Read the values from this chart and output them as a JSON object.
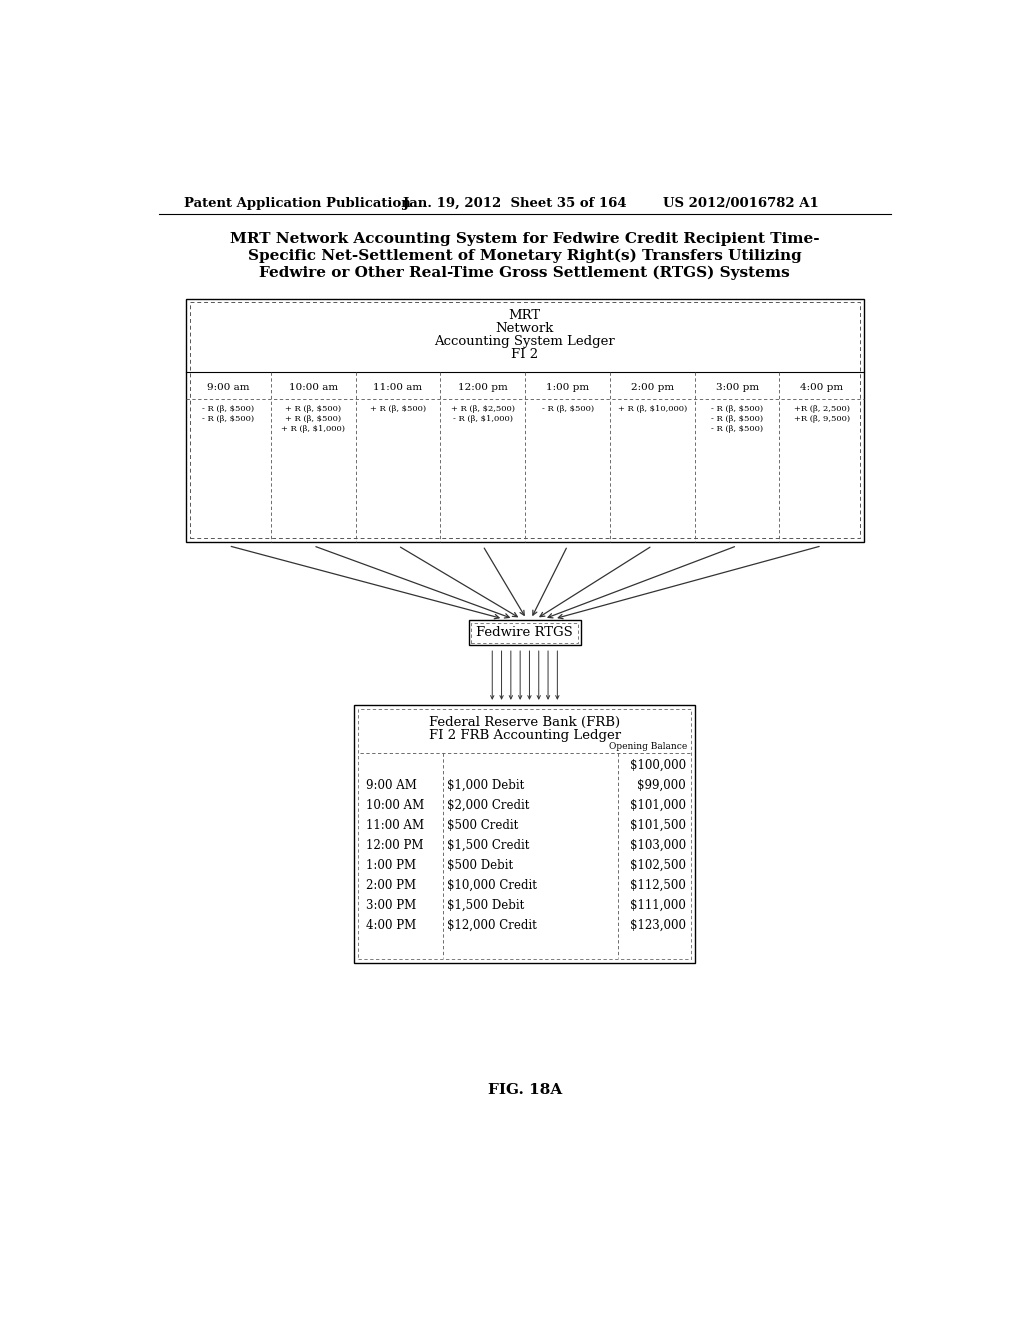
{
  "header_left": "Patent Application Publication",
  "header_mid": "Jan. 19, 2012  Sheet 35 of 164",
  "header_right": "US 2012/0016782 A1",
  "main_title_lines": [
    "MRT Network Accounting System for Fedwire Credit Recipient Time-",
    "Specific Net-Settlement of Monetary Right(s) Transfers Utilizing",
    "Fedwire or Other Real-Time Gross Settlement (RTGS) Systems"
  ],
  "top_box_lines": [
    "MRT",
    "Network",
    "Accounting System Ledger",
    "FI 2"
  ],
  "time_columns": [
    "9:00 am",
    "10:00 am",
    "11:00 am",
    "12:00 pm",
    "1:00 pm",
    "2:00 pm",
    "3:00 pm",
    "4:00 pm"
  ],
  "time_entries": [
    [
      "- R (β, $500)",
      "- R (β, $500)"
    ],
    [
      "+ R (β, $500)",
      "+ R (β, $500)",
      "+ R (β, $1,000)"
    ],
    [
      "+ R (β, $500)"
    ],
    [
      "+ R (β, $2,500)",
      "- R (β, $1,000)"
    ],
    [
      "- R (β, $500)"
    ],
    [
      "+ R (β, $10,000)"
    ],
    [
      "- R (β, $500)",
      "- R (β, $500)",
      "- R (β, $500)"
    ],
    [
      "+R (β, 2,500)",
      "+R (β, 9,500)"
    ]
  ],
  "fedwire_label": "Fedwire RTGS",
  "frb_box_title1": "Federal Reserve Bank (FRB)",
  "frb_box_title2": "FI 2 FRB Accounting Ledger",
  "frb_opening_balance": "Opening Balance",
  "frb_rows": [
    [
      "",
      "",
      "$100,000"
    ],
    [
      "9:00 AM",
      "$1,000 Debit",
      "$99,000"
    ],
    [
      "10:00 AM",
      "$2,000 Credit",
      "$101,000"
    ],
    [
      "11:00 AM",
      "$500 Credit",
      "$101,500"
    ],
    [
      "12:00 PM",
      "$1,500 Credit",
      "$103,000"
    ],
    [
      "1:00 PM",
      "$500 Debit",
      "$102,500"
    ],
    [
      "2:00 PM",
      "$10,000 Credit",
      "$112,500"
    ],
    [
      "3:00 PM",
      "$1,500 Debit",
      "$111,000"
    ],
    [
      "4:00 PM",
      "$12,000 Credit",
      "$123,000"
    ]
  ],
  "fig_label": "FIG. 18A",
  "bg_color": "#ffffff",
  "text_color": "#000000"
}
